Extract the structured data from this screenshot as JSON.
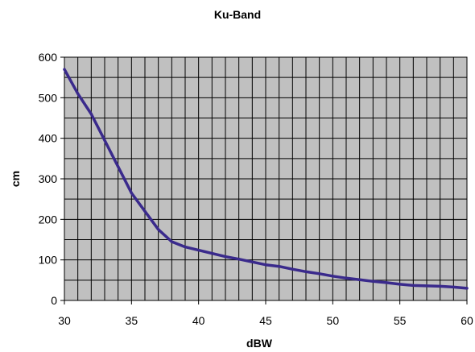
{
  "chart_data": {
    "type": "line",
    "title": "Ku-Band",
    "xlabel": "dBW",
    "ylabel": "cm",
    "xlim": [
      30,
      60
    ],
    "ylim": [
      0,
      600
    ],
    "xticks": [
      30,
      35,
      40,
      45,
      50,
      55,
      60
    ],
    "yticks": [
      0,
      100,
      200,
      300,
      400,
      500,
      600
    ],
    "grid": true,
    "colors": {
      "plot_bg": "#c0c0c0",
      "grid": "#000000",
      "line": "#3a2a8c"
    },
    "series": [
      {
        "x": [
          30,
          31,
          32,
          33,
          34,
          35,
          36,
          37,
          38,
          39,
          40,
          41,
          42,
          43,
          44,
          45,
          46,
          47,
          48,
          49,
          50,
          51,
          52,
          53,
          54,
          55,
          56,
          57,
          58,
          59,
          60
        ],
        "values": [
          570,
          510,
          460,
          395,
          330,
          265,
          220,
          175,
          145,
          132,
          124,
          116,
          108,
          102,
          95,
          88,
          84,
          77,
          71,
          66,
          60,
          55,
          51,
          47,
          44,
          40,
          37,
          36,
          35,
          33,
          30
        ]
      }
    ]
  }
}
